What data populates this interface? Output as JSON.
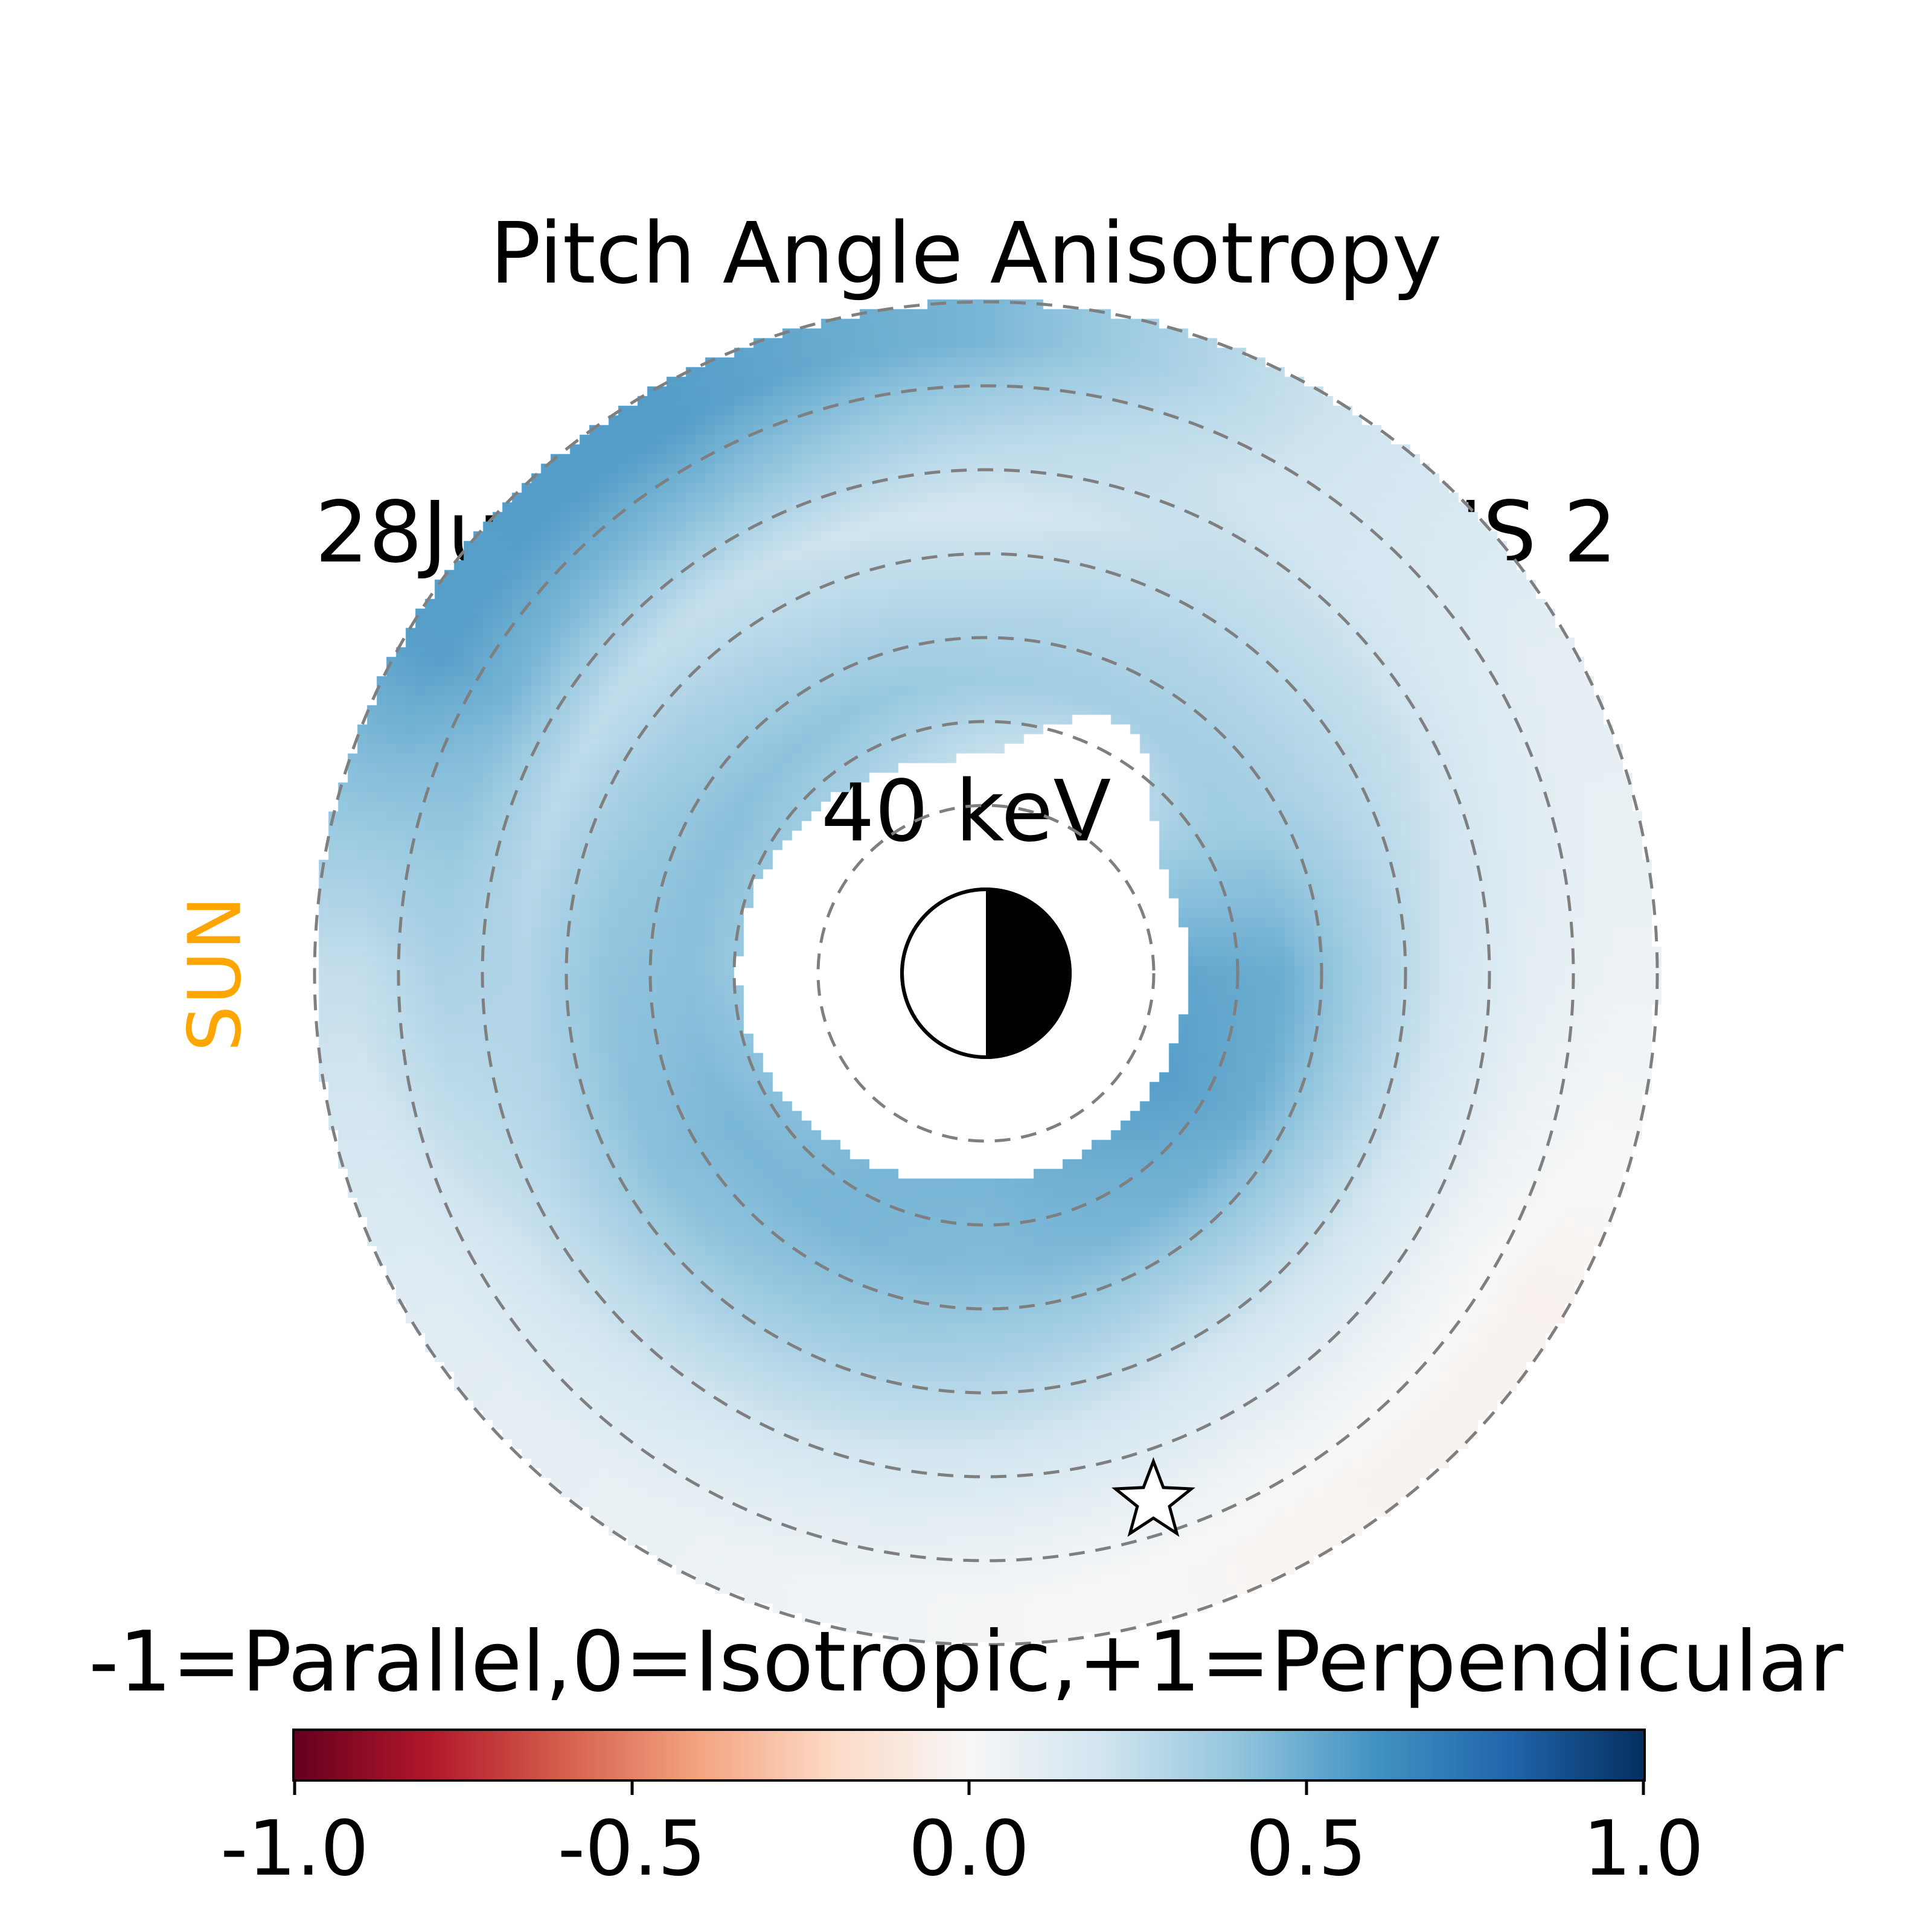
{
  "title": {
    "line1": "Pitch Angle Anisotropy",
    "line2": "28Jun2013, 1208 UT,  TWINS 2",
    "line3": "40 keV"
  },
  "sun_label": {
    "text": "SUN",
    "color": "#FFA500"
  },
  "colorbar": {
    "label": "-1=Parallel,0=Isotropic,+1=Perpendicular",
    "min": -1.0,
    "max": 1.0,
    "ticks": [
      "-1.0",
      "-0.5",
      "0.0",
      "0.5",
      "1.0"
    ],
    "tick_values": [
      -1.0,
      -0.5,
      0.0,
      0.5,
      1.0
    ],
    "colormap": "RdBu",
    "anchors": [
      {
        "t": 0.0,
        "color": "#67001f"
      },
      {
        "t": 0.1,
        "color": "#b2182b"
      },
      {
        "t": 0.2,
        "color": "#d6604d"
      },
      {
        "t": 0.3,
        "color": "#f4a582"
      },
      {
        "t": 0.4,
        "color": "#fddbc7"
      },
      {
        "t": 0.5,
        "color": "#f7f7f7"
      },
      {
        "t": 0.6,
        "color": "#d1e5f0"
      },
      {
        "t": 0.7,
        "color": "#92c5de"
      },
      {
        "t": 0.8,
        "color": "#4393c3"
      },
      {
        "t": 0.9,
        "color": "#2166ac"
      },
      {
        "t": 1.0,
        "color": "#053061"
      }
    ]
  },
  "chart_data": {
    "type": "heatmap",
    "projection": "polar",
    "title": "Pitch Angle Anisotropy",
    "subtitle": "28Jun2013, 1208 UT, TWINS 2",
    "energy": "40 keV",
    "value_meaning": "-1=Parallel, 0=Isotropic, +1=Perpendicular",
    "value_range": [
      -1.0,
      1.0
    ],
    "radial_unit": "L-shell (Earth radii)",
    "radial_max_L": 8,
    "grid_circles_L": [
      2,
      3,
      4,
      5,
      6,
      7,
      8
    ],
    "grid_style": "dashed gray circles",
    "sun_direction": "left (180 deg)",
    "angle_convention": "degrees CCW from +x (right); Sun at 180 deg",
    "angles_deg": [
      0,
      30,
      60,
      90,
      120,
      150,
      180,
      210,
      240,
      270,
      300,
      330
    ],
    "radii_L": [
      2.5,
      3.5,
      4.5,
      5.5,
      6.5,
      7.5
    ],
    "anisotropy": [
      [
        0.52,
        0.5,
        0.34,
        0.2,
        0.1,
        0.06
      ],
      [
        0.38,
        0.36,
        0.3,
        0.24,
        0.15,
        0.1
      ],
      [
        0.15,
        0.34,
        0.3,
        0.24,
        0.2,
        0.22
      ],
      [
        0.22,
        0.36,
        0.28,
        0.18,
        0.3,
        0.46
      ],
      [
        0.3,
        0.4,
        0.3,
        0.22,
        0.42,
        0.56
      ],
      [
        0.35,
        0.42,
        0.36,
        0.26,
        0.46,
        0.55
      ],
      [
        0.35,
        0.42,
        0.4,
        0.3,
        0.32,
        0.24
      ],
      [
        0.4,
        0.46,
        0.42,
        0.3,
        0.2,
        0.12
      ],
      [
        0.46,
        0.46,
        0.38,
        0.26,
        0.14,
        0.07
      ],
      [
        0.46,
        0.44,
        0.34,
        0.22,
        0.1,
        0.02
      ],
      [
        0.5,
        0.46,
        0.3,
        0.16,
        0.06,
        -0.03
      ],
      [
        0.55,
        0.5,
        0.32,
        0.16,
        0.04,
        -0.04
      ]
    ],
    "inner_hole": {
      "base_L": 2.4,
      "bulges": [
        {
          "angle_deg": 175,
          "width_deg": 50,
          "amount_L": 0.55
        },
        {
          "angle_deg": 62,
          "width_deg": 13,
          "amount_L": 0.95
        }
      ],
      "note": "white data-gap region surrounding Earth with notch toward upper right"
    },
    "earth": {
      "radius_L": 1,
      "day_side": "left half white (sunward)",
      "night_side": "right half black"
    },
    "star_marker": {
      "L": 6.6,
      "angle_deg": -72.4,
      "style": "open five-point star, white fill, black edge"
    }
  }
}
